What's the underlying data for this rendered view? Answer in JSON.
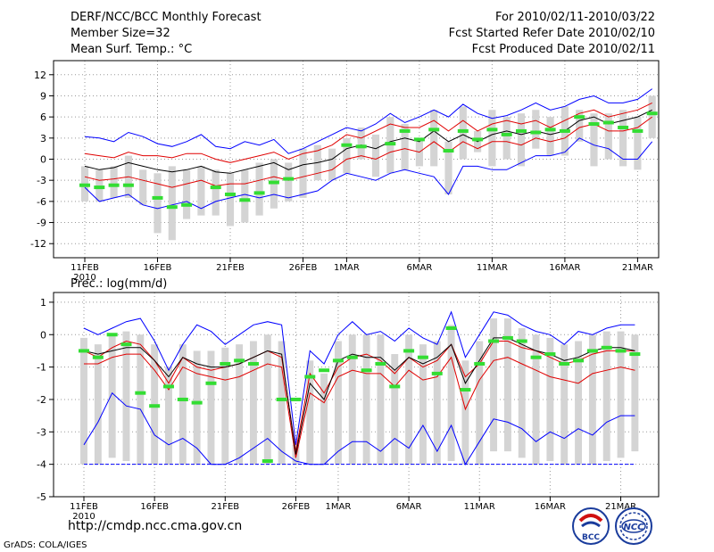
{
  "header": {
    "title": "DERF/NCC/BCC Monthly Forecast",
    "member_size": "Member Size=32",
    "variable": "Mean Surf. Temp.: °C",
    "period": "For 2010/02/11-2010/03/22",
    "fcst_started": "Fcst Started Refer Date 2010/02/10",
    "fcst_produced": "Fcst Produced Date 2010/02/11"
  },
  "precip_label": "Prec.: log(mm/d)",
  "footer": {
    "url": "http://cmdp.ncc.cma.gov.cn",
    "credit": "GrADS: COLA/IGES"
  },
  "logos": {
    "left_text": "BCC",
    "right_text": "NCC"
  },
  "colors": {
    "max_min": "#0000ff",
    "spread": "#e00000",
    "mean": "#000000",
    "observed": "#33dd33",
    "box": "#d4d4d4",
    "floor_line": "#0000ff"
  },
  "chart_data": [
    {
      "type": "box",
      "title": "Mean Surf. Temp.: °C",
      "x_tick_labels": [
        "11FEB\n2010",
        "16FEB",
        "21FEB",
        "26FEB",
        "1MAR",
        "6MAR",
        "11MAR",
        "16MAR",
        "21MAR"
      ],
      "x_tick_days": [
        0,
        5,
        10,
        15,
        18,
        23,
        28,
        33,
        38
      ],
      "ylim": [
        -14,
        14
      ],
      "y_ticks": [
        -12,
        -9,
        -6,
        -3,
        0,
        3,
        6,
        9,
        12
      ],
      "series": [
        {
          "name": "max",
          "values": [
            3.2,
            3.0,
            2.5,
            3.8,
            3.2,
            2.2,
            1.8,
            2.5,
            3.5,
            1.8,
            1.5,
            2.5,
            2.0,
            2.8,
            0.8,
            1.5,
            2.5,
            3.5,
            4.5,
            4.0,
            5.0,
            6.5,
            5.2,
            6.0,
            7.0,
            6.0,
            7.8,
            6.5,
            5.8,
            6.2,
            7.0,
            8.0,
            7.0,
            7.5,
            8.5,
            9.0,
            8.0,
            8.0,
            8.5,
            10.0
          ]
        },
        {
          "name": "upper",
          "values": [
            0.8,
            0.5,
            0.2,
            1.0,
            0.5,
            0.5,
            0.2,
            0.8,
            0.8,
            0.0,
            -0.5,
            0.0,
            0.5,
            1.0,
            0.0,
            0.8,
            1.2,
            2.0,
            3.5,
            3.0,
            4.0,
            5.0,
            4.5,
            4.5,
            5.5,
            4.0,
            5.5,
            4.0,
            5.0,
            5.5,
            5.0,
            5.5,
            4.5,
            5.5,
            6.5,
            7.0,
            6.0,
            6.5,
            7.0,
            8.0
          ]
        },
        {
          "name": "mean",
          "values": [
            -1.0,
            -1.5,
            -1.2,
            -0.5,
            -1.0,
            -1.5,
            -1.8,
            -1.5,
            -1.0,
            -1.8,
            -2.0,
            -1.5,
            -1.0,
            -0.5,
            -1.5,
            -0.8,
            -0.5,
            0.0,
            1.5,
            2.0,
            1.5,
            2.5,
            3.0,
            2.5,
            4.0,
            2.5,
            3.5,
            2.5,
            3.5,
            4.0,
            3.5,
            4.0,
            3.5,
            4.0,
            5.5,
            6.0,
            5.0,
            5.5,
            6.0,
            7.0
          ]
        },
        {
          "name": "lower",
          "values": [
            -2.5,
            -3.0,
            -2.8,
            -2.5,
            -3.0,
            -3.5,
            -4.0,
            -3.5,
            -3.0,
            -3.8,
            -3.5,
            -3.5,
            -3.0,
            -2.5,
            -3.0,
            -2.5,
            -2.0,
            -1.5,
            0.0,
            0.5,
            0.0,
            1.0,
            1.5,
            1.0,
            2.5,
            1.0,
            2.5,
            1.5,
            2.5,
            2.5,
            2.0,
            3.0,
            2.5,
            3.0,
            4.5,
            5.0,
            4.0,
            4.0,
            4.5,
            6.0
          ]
        },
        {
          "name": "min",
          "values": [
            -4.0,
            -6.0,
            -5.5,
            -5.0,
            -6.5,
            -7.0,
            -6.5,
            -6.0,
            -7.0,
            -6.0,
            -5.5,
            -5.0,
            -5.5,
            -5.0,
            -5.5,
            -5.0,
            -4.5,
            -3.0,
            -2.0,
            -2.5,
            -3.0,
            -2.0,
            -1.5,
            -2.0,
            -2.5,
            -5.0,
            -1.0,
            -1.0,
            -1.5,
            -1.5,
            -0.5,
            0.5,
            0.5,
            1.0,
            3.0,
            2.0,
            1.5,
            0.0,
            0.0,
            2.5
          ]
        },
        {
          "name": "box_high",
          "values": [
            -1.0,
            -1.5,
            -1.0,
            0.5,
            -1.5,
            -2.0,
            -1.0,
            -1.5,
            -1.0,
            -1.5,
            -2.0,
            -1.5,
            -0.5,
            0.0,
            -0.5,
            1.5,
            2.0,
            1.5,
            3.0,
            4.5,
            3.5,
            6.0,
            5.0,
            3.0,
            7.0,
            2.5,
            7.5,
            4.0,
            7.0,
            6.0,
            6.5,
            7.0,
            6.0,
            7.5,
            7.0,
            6.5,
            6.5,
            7.0,
            6.0,
            9.0
          ]
        },
        {
          "name": "box_low",
          "values": [
            -6.0,
            -6.0,
            -5.5,
            -5.5,
            -6.5,
            -10.5,
            -11.5,
            -8.5,
            -8.0,
            -8.0,
            -9.5,
            -9.0,
            -8.0,
            -7.0,
            -6.0,
            -5.5,
            -3.0,
            -3.0,
            -2.0,
            0.0,
            -2.5,
            -2.0,
            -1.5,
            -1.0,
            -1.0,
            -5.0,
            0.0,
            1.0,
            -1.0,
            0.0,
            -1.0,
            1.5,
            0.5,
            0.5,
            2.5,
            -1.0,
            0.0,
            -1.0,
            -1.5,
            3.0
          ]
        },
        {
          "name": "observed",
          "values": [
            -3.7,
            -4.0,
            -3.7,
            -3.7,
            null,
            -5.5,
            -6.8,
            -6.5,
            null,
            -4.0,
            -5.0,
            -5.8,
            -4.8,
            -3.3,
            -2.8,
            null,
            null,
            null,
            2.0,
            1.8,
            null,
            2.2,
            4.0,
            2.8,
            4.2,
            1.2,
            4.0,
            2.8,
            4.2,
            3.5,
            4.0,
            3.8,
            4.2,
            4.0,
            6.0,
            5.0,
            5.2,
            4.5,
            4.0,
            6.5
          ]
        }
      ]
    },
    {
      "type": "box",
      "title": "Prec.: log(mm/d)",
      "x_tick_labels": [
        "11FEB\n2010",
        "16FEB",
        "21FEB",
        "26FEB",
        "1MAR",
        "6MAR",
        "11MAR",
        "16MAR",
        "21MAR"
      ],
      "x_tick_days": [
        0,
        5,
        10,
        15,
        18,
        23,
        28,
        33,
        38
      ],
      "ylim": [
        -5,
        1.3
      ],
      "y_ticks": [
        -5,
        -4,
        -3,
        -2,
        -1,
        0,
        1
      ],
      "floor": -4,
      "series": [
        {
          "name": "max",
          "values": [
            0.2,
            0.0,
            0.2,
            0.4,
            0.5,
            -0.2,
            -1.1,
            -0.3,
            0.3,
            0.1,
            -0.3,
            0.0,
            0.3,
            0.4,
            0.3,
            -3.4,
            -0.5,
            -0.9,
            0.0,
            0.4,
            0.0,
            0.1,
            -0.2,
            0.2,
            -0.1,
            -0.3,
            0.7,
            -0.7,
            0.0,
            0.7,
            0.6,
            0.3,
            0.1,
            0.0,
            -0.3,
            0.1,
            0.0,
            0.2,
            0.3,
            0.3
          ]
        },
        {
          "name": "upper",
          "values": [
            -0.5,
            -0.7,
            -0.4,
            -0.2,
            -0.3,
            -0.8,
            -1.5,
            -0.7,
            -1.0,
            -1.1,
            -1.0,
            -0.9,
            -0.7,
            -0.5,
            -0.7,
            -3.6,
            -1.2,
            -1.8,
            -1.0,
            -0.7,
            -0.6,
            -0.8,
            -1.2,
            -0.7,
            -1.0,
            -0.8,
            -0.3,
            -1.3,
            -0.9,
            -0.2,
            -0.2,
            -0.4,
            -0.5,
            -0.7,
            -0.9,
            -0.8,
            -0.6,
            -0.5,
            -0.5,
            -0.5
          ]
        },
        {
          "name": "mean",
          "values": [
            -0.5,
            -0.6,
            -0.5,
            -0.4,
            -0.4,
            -0.8,
            -1.3,
            -0.7,
            -0.9,
            -1.0,
            -1.0,
            -0.9,
            -0.7,
            -0.5,
            -0.6,
            -3.7,
            -1.5,
            -2.0,
            -0.8,
            -0.6,
            -0.7,
            -0.7,
            -1.1,
            -0.7,
            -0.9,
            -0.7,
            -0.3,
            -1.5,
            -0.8,
            -0.1,
            -0.1,
            -0.3,
            -0.5,
            -0.6,
            -0.8,
            -0.7,
            -0.5,
            -0.4,
            -0.4,
            -0.5
          ]
        },
        {
          "name": "lower",
          "values": [
            -0.9,
            -0.9,
            -0.7,
            -0.6,
            -0.6,
            -1.1,
            -1.7,
            -1.0,
            -1.2,
            -1.3,
            -1.4,
            -1.3,
            -1.1,
            -0.9,
            -1.0,
            -3.8,
            -1.8,
            -2.1,
            -1.3,
            -1.1,
            -1.2,
            -1.2,
            -1.6,
            -1.1,
            -1.4,
            -1.3,
            -0.7,
            -2.3,
            -1.4,
            -0.8,
            -0.7,
            -0.9,
            -1.1,
            -1.3,
            -1.4,
            -1.5,
            -1.2,
            -1.1,
            -1.0,
            -1.1
          ]
        },
        {
          "name": "min",
          "values": [
            -3.4,
            -2.7,
            -1.8,
            -2.2,
            -2.3,
            -3.1,
            -3.4,
            -3.2,
            -3.5,
            -4.0,
            -4.0,
            -3.8,
            -3.5,
            -3.2,
            -3.6,
            -3.9,
            -4.0,
            -4.0,
            -3.6,
            -3.3,
            -3.3,
            -3.6,
            -3.2,
            -3.5,
            -2.8,
            -3.6,
            -2.8,
            -4.0,
            -3.3,
            -2.6,
            -2.7,
            -2.9,
            -3.3,
            -3.0,
            -3.2,
            -2.9,
            -3.1,
            -2.7,
            -2.5,
            -2.5
          ]
        },
        {
          "name": "box_high",
          "values": [
            -0.1,
            -0.3,
            0.0,
            0.1,
            0.0,
            -0.3,
            -1.0,
            -0.3,
            -0.5,
            -0.5,
            -0.4,
            -0.3,
            -0.2,
            0.0,
            -0.2,
            -3.4,
            -0.8,
            -1.2,
            -0.2,
            0.0,
            0.0,
            0.0,
            -0.6,
            0.0,
            -0.3,
            -0.2,
            0.3,
            -0.8,
            -0.2,
            0.5,
            0.5,
            0.2,
            0.0,
            -0.1,
            -0.3,
            -0.2,
            0.0,
            0.1,
            0.1,
            0.0
          ]
        },
        {
          "name": "box_low",
          "values": [
            -4.0,
            -4.0,
            -3.8,
            -3.9,
            -4.0,
            -4.0,
            -4.0,
            -4.0,
            -4.0,
            -4.0,
            -4.0,
            -4.0,
            -4.0,
            -4.0,
            -4.0,
            -4.0,
            -4.0,
            -4.0,
            -4.0,
            -4.0,
            -4.0,
            -4.0,
            -4.0,
            -4.0,
            -4.0,
            -4.0,
            -3.9,
            -4.0,
            -4.0,
            -3.6,
            -3.6,
            -3.8,
            -4.0,
            -3.9,
            -4.0,
            -4.0,
            -4.0,
            -3.9,
            -3.8,
            -3.6
          ]
        },
        {
          "name": "observed",
          "values": [
            -0.5,
            -0.7,
            0.0,
            -0.3,
            -1.8,
            -2.2,
            -1.6,
            -2.0,
            -2.1,
            -1.5,
            -0.9,
            -0.8,
            -0.9,
            -3.9,
            -2.0,
            -2.0,
            -1.3,
            -1.1,
            -0.8,
            -0.7,
            -1.1,
            -0.9,
            -1.6,
            -0.5,
            -0.7,
            -1.2,
            0.2,
            -1.7,
            -0.9,
            -0.2,
            -0.1,
            -0.2,
            -0.7,
            -0.6,
            -0.9,
            -0.8,
            -0.5,
            -0.4,
            -0.5,
            -0.6
          ]
        }
      ]
    }
  ]
}
